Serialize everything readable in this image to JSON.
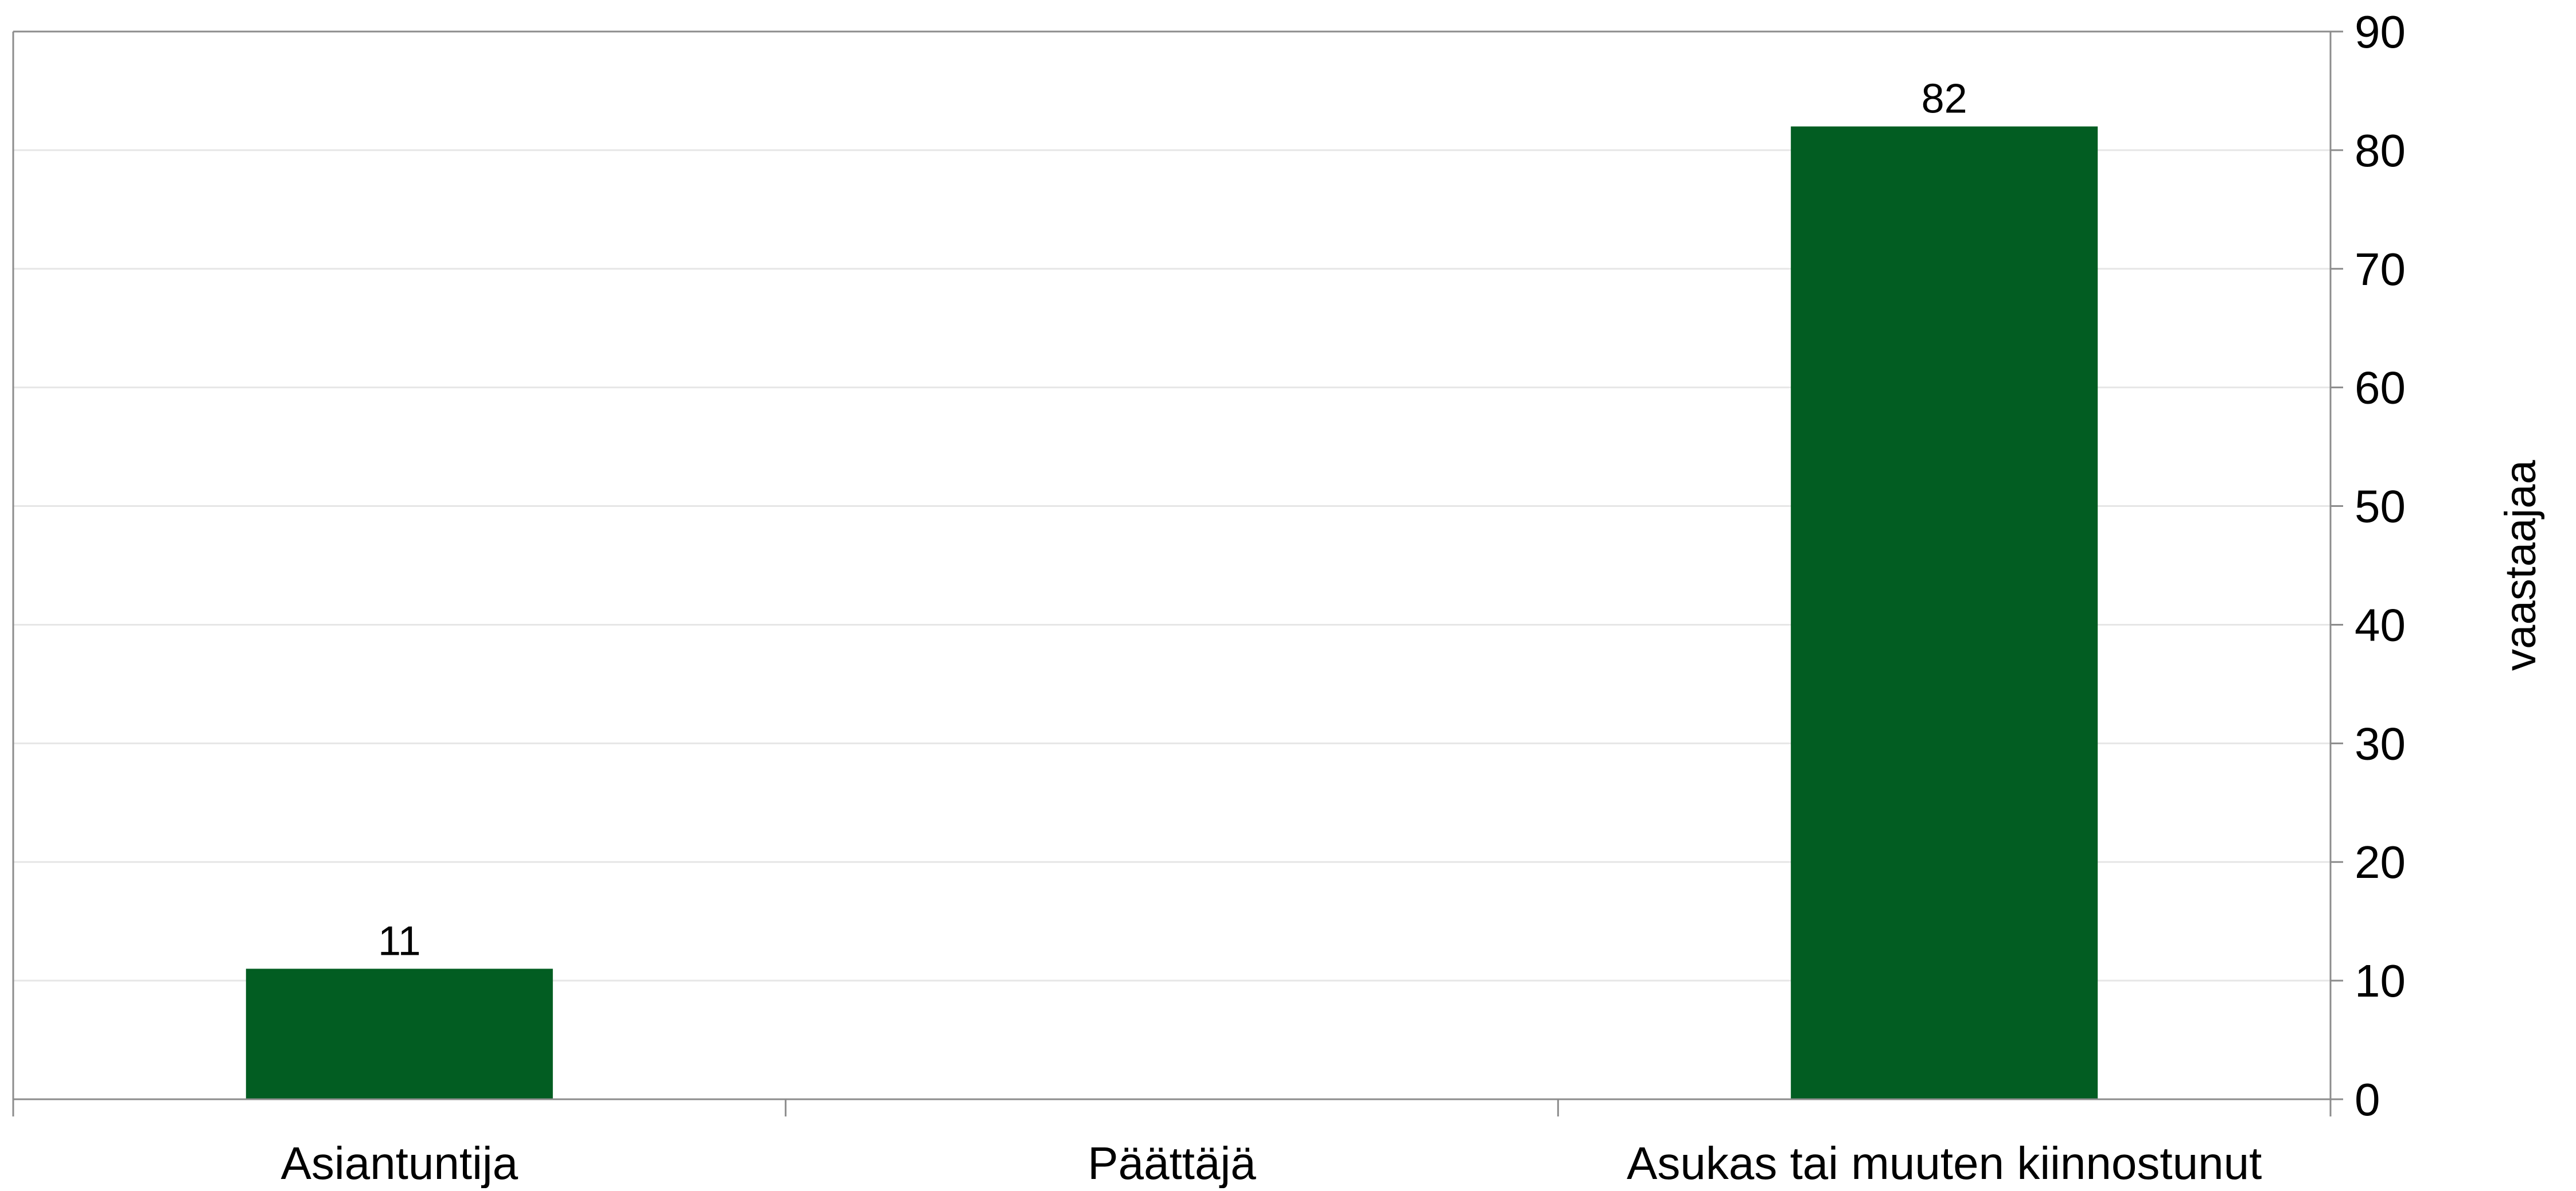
{
  "chart_data": {
    "type": "bar",
    "title": "",
    "xlabel": "",
    "ylabel": "vaastaajaa",
    "categories": [
      "Asiantuntija",
      "Päättäjä",
      "Asukas tai muuten kiinnostunut"
    ],
    "values": [
      11,
      null,
      82
    ],
    "data_labels": [
      "11",
      "",
      "82"
    ],
    "ylim": [
      0,
      90
    ],
    "yticks": [
      0,
      10,
      20,
      30,
      40,
      50,
      60,
      70,
      80,
      90
    ],
    "y_axis_position": "right",
    "grid": true,
    "legend": "none",
    "colors": {
      "bar": "#025d22",
      "grid": "#e6e6e6",
      "axis": "#8c8c8c",
      "text": "#000000"
    }
  }
}
